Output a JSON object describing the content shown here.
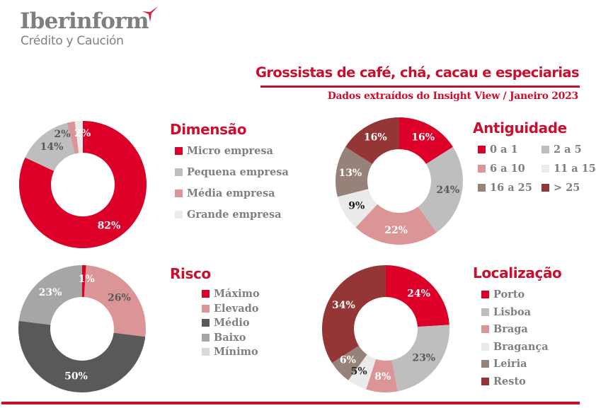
{
  "header": {
    "logo_main": "Iberinform",
    "logo_sub": "Crédito y Caución",
    "title": "Grossistas de café, chá, cacau e especiarias",
    "subtitle": "Dados extraídos do Insight View / Janeiro 2023"
  },
  "colors": {
    "brand_red": "#c8102e"
  },
  "chart_data": [
    {
      "type": "pie",
      "variant": "donut",
      "title": "Dimensão",
      "categories": [
        "Micro empresa",
        "Pequena empresa",
        "Média empresa",
        "Grande empresa"
      ],
      "values": [
        82,
        14,
        2,
        2
      ],
      "labels": [
        "82%",
        "14%",
        "2%",
        "2%"
      ],
      "colors": [
        "#dc0028",
        "#bebebe",
        "#db9596",
        "#ebebeb"
      ],
      "label_colors": [
        "#ffffff",
        "#595959",
        "#595959",
        "#ffffff"
      ],
      "legend": {
        "items": [
          "Micro empresa",
          "Pequena empresa",
          "Média empresa",
          "Grande empresa"
        ],
        "placement": "right"
      }
    },
    {
      "type": "pie",
      "variant": "donut",
      "title": "Antiguidade",
      "categories": [
        "0 a 1",
        "2 a 5",
        "6 a 10",
        "11 a 15",
        "16 a 25",
        "> 25"
      ],
      "values": [
        16,
        24,
        22,
        9,
        13,
        16
      ],
      "labels": [
        "16%",
        "24%",
        "22%",
        "9%",
        "13%",
        "16%"
      ],
      "colors": [
        "#dc0028",
        "#bebebe",
        "#db9596",
        "#ebebeb",
        "#978279",
        "#943636"
      ],
      "label_colors": [
        "#ffffff",
        "#595959",
        "#ffffff",
        "#1a1a1a",
        "#ffffff",
        "#ffffff"
      ],
      "legend": {
        "items": [
          "0 a 1",
          "2 a 5",
          "6 a 10",
          "11 a 15",
          "16 a 25",
          "> 25"
        ],
        "placement": "right"
      }
    },
    {
      "type": "pie",
      "variant": "donut",
      "title": "Risco",
      "categories": [
        "Máximo",
        "Elevado",
        "Médio",
        "Baixo",
        "Mínimo"
      ],
      "values": [
        1,
        26,
        50,
        23,
        0
      ],
      "labels": [
        "1%",
        "26%",
        "50%",
        "23%",
        ""
      ],
      "colors": [
        "#dc0028",
        "#db9596",
        "#595959",
        "#a6a6a6",
        "#d9d9d9"
      ],
      "label_colors": [
        "#ffffff",
        "#595959",
        "#ffffff",
        "#ffffff",
        "#595959"
      ],
      "legend": {
        "items": [
          "Máximo",
          "Elevado",
          "Médio",
          "Baixo",
          "Mínimo"
        ],
        "placement": "right"
      }
    },
    {
      "type": "pie",
      "variant": "donut",
      "title": "Localização",
      "categories": [
        "Porto",
        "Lisboa",
        "Braga",
        "Bragança",
        "Leiria",
        "Resto"
      ],
      "values": [
        24,
        23,
        8,
        5,
        6,
        34
      ],
      "labels": [
        "24%",
        "23%",
        "8%",
        "5%",
        "6%",
        "34%"
      ],
      "colors": [
        "#dc0028",
        "#bebebe",
        "#db9596",
        "#ebebeb",
        "#978279",
        "#943636"
      ],
      "label_colors": [
        "#ffffff",
        "#595959",
        "#ffffff",
        "#262626",
        "#ffffff",
        "#ffffff"
      ],
      "legend": {
        "items": [
          "Porto",
          "Lisboa",
          "Braga",
          "Bragança",
          "Leiria",
          "Resto"
        ],
        "placement": "right"
      }
    }
  ]
}
